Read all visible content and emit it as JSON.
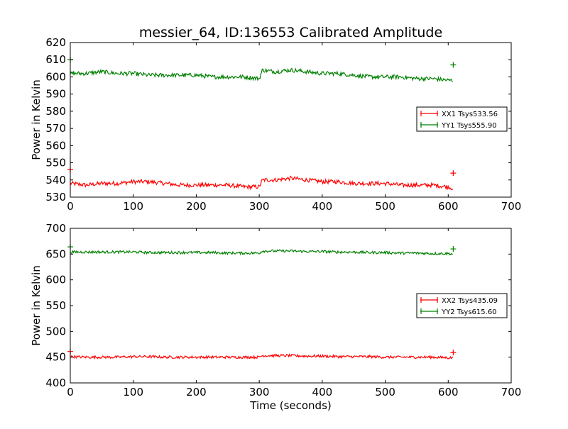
{
  "chart_data": [
    {
      "type": "line",
      "title": "messier_64, ID:136553 Calibrated Amplitude",
      "xlabel": "",
      "ylabel": "Power in Kelvin",
      "xlim": [
        0,
        700
      ],
      "ylim": [
        530,
        620
      ],
      "xticks": [
        "0",
        "100",
        "200",
        "300",
        "400",
        "500",
        "600",
        "700"
      ],
      "yticks": [
        "530",
        "540",
        "550",
        "560",
        "570",
        "580",
        "590",
        "600",
        "610",
        "620"
      ],
      "legend_position": "right",
      "x": [
        0,
        25,
        50,
        75,
        100,
        125,
        150,
        175,
        200,
        225,
        250,
        275,
        300,
        305,
        325,
        350,
        375,
        400,
        425,
        450,
        475,
        500,
        525,
        550,
        575,
        600,
        608
      ],
      "series": [
        {
          "name": "XX1 Tsys533.56",
          "color": "#ff0000",
          "values": [
            538,
            537,
            538,
            538,
            539,
            539,
            538,
            537,
            537,
            537,
            537,
            536,
            536,
            540,
            540,
            541,
            540,
            539,
            539,
            538,
            538,
            538,
            537,
            537,
            537,
            536,
            535
          ]
        },
        {
          "name": "YY1 Tsys555.90",
          "color": "#008000",
          "values": [
            602,
            602,
            603,
            602,
            602,
            601,
            601,
            601,
            601,
            600,
            600,
            600,
            599,
            604,
            603,
            604,
            603,
            602,
            602,
            601,
            600,
            600,
            600,
            599,
            599,
            598,
            598
          ]
        }
      ]
    },
    {
      "type": "line",
      "title": "",
      "xlabel": "Time (seconds)",
      "ylabel": "Power in Kelvin",
      "xlim": [
        0,
        700
      ],
      "ylim": [
        400,
        700
      ],
      "xticks": [
        "0",
        "100",
        "200",
        "300",
        "400",
        "500",
        "600",
        "700"
      ],
      "yticks": [
        "400",
        "450",
        "500",
        "550",
        "600",
        "650",
        "700"
      ],
      "legend_position": "right",
      "x": [
        0,
        25,
        50,
        75,
        100,
        125,
        150,
        175,
        200,
        225,
        250,
        275,
        300,
        305,
        325,
        350,
        375,
        400,
        425,
        450,
        475,
        500,
        525,
        550,
        575,
        600,
        608
      ],
      "series": [
        {
          "name": "XX2 Tsys435.09",
          "color": "#ff0000",
          "values": [
            451,
            450,
            450,
            450,
            451,
            451,
            450,
            450,
            450,
            450,
            450,
            450,
            450,
            453,
            453,
            453,
            452,
            452,
            451,
            451,
            451,
            450,
            450,
            450,
            450,
            449,
            449
          ]
        },
        {
          "name": "YY2 Tsys615.60",
          "color": "#008000",
          "values": [
            654,
            654,
            654,
            654,
            654,
            653,
            653,
            653,
            653,
            653,
            652,
            652,
            652,
            656,
            656,
            656,
            655,
            655,
            654,
            654,
            653,
            653,
            652,
            652,
            651,
            651,
            650
          ]
        }
      ]
    }
  ]
}
